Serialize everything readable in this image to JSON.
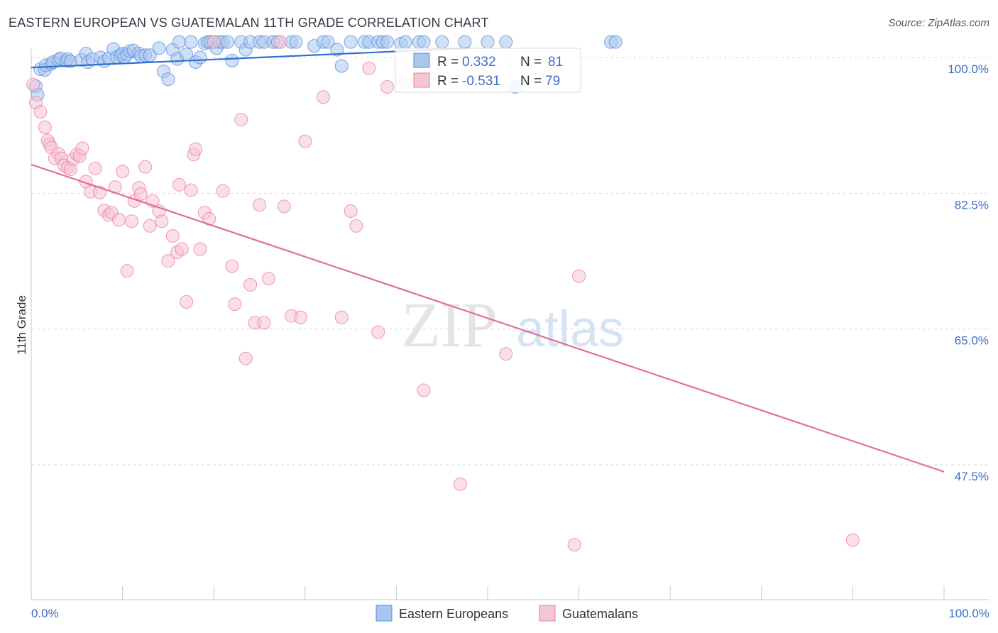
{
  "header": {
    "title": "EASTERN EUROPEAN VS GUATEMALAN 11TH GRADE CORRELATION CHART",
    "source": "Source: ZipAtlas.com"
  },
  "watermark": {
    "zip": "ZIP",
    "atlas": "atlas"
  },
  "colors": {
    "blue": "#5b8fd9",
    "blue_fill": "#a9c6ef",
    "blue_line": "#2f6fd0",
    "pink": "#e8829f",
    "pink_fill": "#f6c5d3",
    "pink_line": "#e0709a",
    "grid": "#d9d9e0",
    "tick_text": "#3d6ec4"
  },
  "chart_data": {
    "type": "scatter",
    "title": "EASTERN EUROPEAN VS GUATEMALAN 11TH GRADE CORRELATION CHART",
    "xlabel": "",
    "ylabel": "11th Grade",
    "xlim": [
      0,
      100
    ],
    "ylim": [
      33,
      102
    ],
    "x_tick_labels": [
      "0.0%",
      "100.0%"
    ],
    "y_ticks": [
      {
        "value": 100.0,
        "label": "100.0%"
      },
      {
        "value": 82.5,
        "label": "82.5%"
      },
      {
        "value": 65.0,
        "label": "65.0%"
      },
      {
        "value": 47.5,
        "label": "47.5%"
      }
    ],
    "grid": true,
    "legend": {
      "position": "bottom-center",
      "entries": [
        "Eastern Europeans",
        "Guatemalans"
      ]
    },
    "stats": [
      {
        "r_label": "R =",
        "r_value": "0.332",
        "n_label": "N =",
        "n_value": "81"
      },
      {
        "r_label": "R =",
        "r_value": "-0.531",
        "n_label": "N =",
        "n_value": "79"
      }
    ],
    "series": [
      {
        "name": "Eastern Europeans",
        "r": 0.332,
        "n": 81,
        "trend": {
          "x": [
            0,
            48
          ],
          "y": [
            98.7,
            101.2
          ]
        },
        "points": [
          [
            0.5,
            96.3
          ],
          [
            0.7,
            95.2
          ],
          [
            1.0,
            98.5
          ],
          [
            1.5,
            98.4
          ],
          [
            1.6,
            99.0
          ],
          [
            2.2,
            99.2
          ],
          [
            2.4,
            99.4
          ],
          [
            3.0,
            99.7
          ],
          [
            3.2,
            99.9
          ],
          [
            3.8,
            99.6
          ],
          [
            4.0,
            99.8
          ],
          [
            4.3,
            99.5
          ],
          [
            5.5,
            99.7
          ],
          [
            6.0,
            100.5
          ],
          [
            6.2,
            99.4
          ],
          [
            6.7,
            99.8
          ],
          [
            7.6,
            100.0
          ],
          [
            8.0,
            99.5
          ],
          [
            8.5,
            99.9
          ],
          [
            9.0,
            101.1
          ],
          [
            9.4,
            100.1
          ],
          [
            9.8,
            100.3
          ],
          [
            10.0,
            100.5
          ],
          [
            10.2,
            100.0
          ],
          [
            10.5,
            100.4
          ],
          [
            10.8,
            100.8
          ],
          [
            11.2,
            100.9
          ],
          [
            11.8,
            100.5
          ],
          [
            12.0,
            100.2
          ],
          [
            12.5,
            100.3
          ],
          [
            13.0,
            100.3
          ],
          [
            14.0,
            101.2
          ],
          [
            14.5,
            98.2
          ],
          [
            15.0,
            97.2
          ],
          [
            15.5,
            101.0
          ],
          [
            16.0,
            99.8
          ],
          [
            16.2,
            102.0
          ],
          [
            17.0,
            100.4
          ],
          [
            17.5,
            102.0
          ],
          [
            18.0,
            99.4
          ],
          [
            18.5,
            100.0
          ],
          [
            19.0,
            101.8
          ],
          [
            19.3,
            102.0
          ],
          [
            19.6,
            102.0
          ],
          [
            20.0,
            102.0
          ],
          [
            20.3,
            101.2
          ],
          [
            20.6,
            102.0
          ],
          [
            21.0,
            102.0
          ],
          [
            21.5,
            102.0
          ],
          [
            22.0,
            99.6
          ],
          [
            23.0,
            102.0
          ],
          [
            23.5,
            101.0
          ],
          [
            24.0,
            102.0
          ],
          [
            25.0,
            102.0
          ],
          [
            25.5,
            102.0
          ],
          [
            26.5,
            102.0
          ],
          [
            27.0,
            102.0
          ],
          [
            28.5,
            102.0
          ],
          [
            29.0,
            102.0
          ],
          [
            31.0,
            101.5
          ],
          [
            32.0,
            102.0
          ],
          [
            32.5,
            102.0
          ],
          [
            33.5,
            101.0
          ],
          [
            34.0,
            98.9
          ],
          [
            35.0,
            102.0
          ],
          [
            36.5,
            102.0
          ],
          [
            37.0,
            102.0
          ],
          [
            38.0,
            102.0
          ],
          [
            38.5,
            102.0
          ],
          [
            39.0,
            102.0
          ],
          [
            40.5,
            101.8
          ],
          [
            41.0,
            102.0
          ],
          [
            42.5,
            102.0
          ],
          [
            43.0,
            102.0
          ],
          [
            45.0,
            102.0
          ],
          [
            47.5,
            102.0
          ],
          [
            50.0,
            102.0
          ],
          [
            52.0,
            102.0
          ],
          [
            53.0,
            96.2
          ],
          [
            63.5,
            102.0
          ],
          [
            64.0,
            102.0
          ]
        ]
      },
      {
        "name": "Guatemalans",
        "r": -0.531,
        "n": 79,
        "trend": {
          "x": [
            0,
            100
          ],
          "y": [
            86.2,
            46.6
          ]
        },
        "points": [
          [
            0.2,
            96.5
          ],
          [
            0.5,
            94.2
          ],
          [
            1.0,
            93.0
          ],
          [
            1.5,
            91.0
          ],
          [
            1.8,
            89.3
          ],
          [
            2.0,
            88.8
          ],
          [
            2.2,
            88.4
          ],
          [
            2.6,
            87.0
          ],
          [
            3.0,
            87.6
          ],
          [
            3.3,
            87.0
          ],
          [
            3.6,
            86.1
          ],
          [
            4.0,
            85.8
          ],
          [
            4.3,
            85.6
          ],
          [
            4.6,
            86.9
          ],
          [
            5.0,
            87.5
          ],
          [
            5.3,
            87.3
          ],
          [
            5.6,
            88.3
          ],
          [
            6.0,
            84.0
          ],
          [
            6.5,
            82.7
          ],
          [
            7.0,
            85.7
          ],
          [
            7.5,
            82.6
          ],
          [
            8.0,
            80.3
          ],
          [
            8.5,
            79.7
          ],
          [
            8.8,
            80.0
          ],
          [
            9.2,
            83.3
          ],
          [
            9.6,
            79.1
          ],
          [
            10.0,
            85.3
          ],
          [
            10.5,
            72.5
          ],
          [
            11.0,
            78.9
          ],
          [
            11.3,
            81.5
          ],
          [
            11.8,
            83.2
          ],
          [
            12.0,
            82.4
          ],
          [
            12.5,
            85.9
          ],
          [
            13.0,
            78.3
          ],
          [
            13.3,
            81.5
          ],
          [
            14.0,
            80.2
          ],
          [
            14.3,
            78.9
          ],
          [
            15.0,
            73.8
          ],
          [
            15.5,
            77.0
          ],
          [
            16.0,
            74.9
          ],
          [
            16.2,
            83.6
          ],
          [
            16.5,
            75.3
          ],
          [
            17.0,
            68.5
          ],
          [
            17.5,
            82.9
          ],
          [
            17.8,
            87.5
          ],
          [
            18.0,
            88.2
          ],
          [
            18.5,
            75.3
          ],
          [
            19.0,
            80.0
          ],
          [
            19.5,
            79.2
          ],
          [
            20.0,
            102.0
          ],
          [
            21.0,
            82.8
          ],
          [
            22.0,
            73.1
          ],
          [
            22.3,
            68.2
          ],
          [
            23.0,
            92.0
          ],
          [
            23.5,
            61.2
          ],
          [
            24.0,
            70.7
          ],
          [
            24.5,
            65.8
          ],
          [
            25.0,
            81.0
          ],
          [
            25.5,
            65.8
          ],
          [
            26.0,
            71.5
          ],
          [
            27.3,
            102.0
          ],
          [
            27.7,
            80.8
          ],
          [
            28.5,
            66.7
          ],
          [
            29.5,
            66.5
          ],
          [
            30.0,
            89.2
          ],
          [
            32.0,
            94.9
          ],
          [
            34.0,
            66.5
          ],
          [
            35.0,
            80.2
          ],
          [
            35.6,
            78.3
          ],
          [
            37.0,
            98.6
          ],
          [
            38.0,
            64.6
          ],
          [
            39.0,
            96.2
          ],
          [
            41.0,
            96.8
          ],
          [
            43.0,
            57.1
          ],
          [
            47.0,
            45.0
          ],
          [
            52.0,
            61.8
          ],
          [
            59.5,
            37.2
          ],
          [
            60.0,
            71.8
          ],
          [
            90.0,
            37.8
          ]
        ]
      }
    ]
  }
}
